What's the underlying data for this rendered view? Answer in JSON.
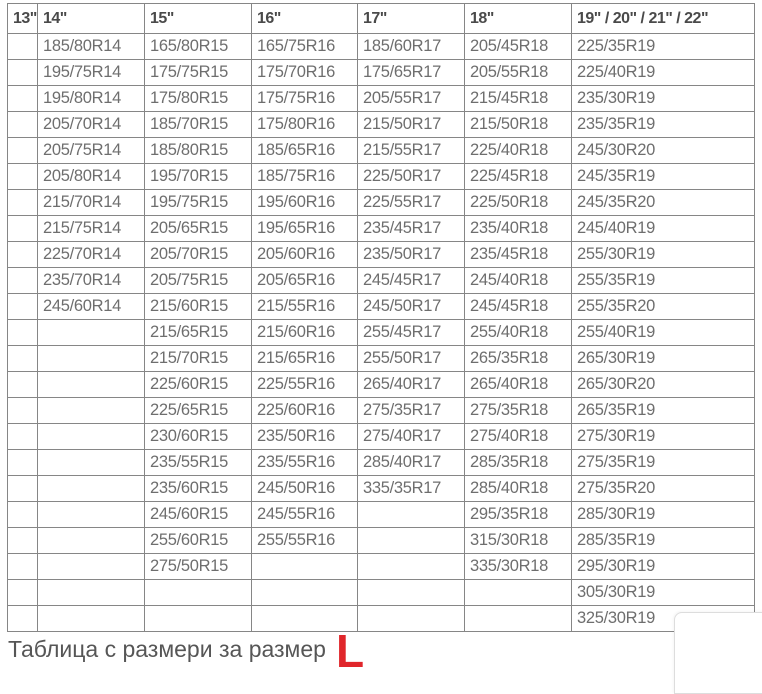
{
  "table": {
    "headers": [
      "13\"",
      "14\"",
      "15\"",
      "16\"",
      "17\"",
      "18\"",
      "19\" / 20\" / 21\" / 22\""
    ],
    "rows": [
      [
        "",
        "185/80R14",
        "165/80R15",
        "165/75R16",
        "185/60R17",
        "205/45R18",
        "225/35R19"
      ],
      [
        "",
        "195/75R14",
        "175/75R15",
        "175/70R16",
        "175/65R17",
        "205/55R18",
        "225/40R19"
      ],
      [
        "",
        "195/80R14",
        "175/80R15",
        "175/75R16",
        "205/55R17",
        "215/45R18",
        "235/30R19"
      ],
      [
        "",
        "205/70R14",
        "185/70R15",
        "175/80R16",
        "215/50R17",
        "215/50R18",
        "235/35R19"
      ],
      [
        "",
        "205/75R14",
        "185/80R15",
        "185/65R16",
        "215/55R17",
        "225/40R18",
        "245/30R20"
      ],
      [
        "",
        "205/80R14",
        "195/70R15",
        "185/75R16",
        "225/50R17",
        "225/45R18",
        "245/35R19"
      ],
      [
        "",
        "215/70R14",
        "195/75R15",
        "195/60R16",
        "225/55R17",
        "225/50R18",
        "245/35R20"
      ],
      [
        "",
        "215/75R14",
        "205/65R15",
        "195/65R16",
        "235/45R17",
        "235/40R18",
        "245/40R19"
      ],
      [
        "",
        "225/70R14",
        "205/70R15",
        "205/60R16",
        "235/50R17",
        "235/45R18",
        "255/30R19"
      ],
      [
        "",
        "235/70R14",
        "205/75R15",
        "205/65R16",
        "245/45R17",
        "245/40R18",
        "255/35R19"
      ],
      [
        "",
        "245/60R14",
        "215/60R15",
        "215/55R16",
        "245/50R17",
        "245/45R18",
        "255/35R20"
      ],
      [
        "",
        "",
        "215/65R15",
        "215/60R16",
        "255/45R17",
        "255/40R18",
        "255/40R19"
      ],
      [
        "",
        "",
        "215/70R15",
        "215/65R16",
        "255/50R17",
        "265/35R18",
        "265/30R19"
      ],
      [
        "",
        "",
        "225/60R15",
        "225/55R16",
        "265/40R17",
        "265/40R18",
        "265/30R20"
      ],
      [
        "",
        "",
        "225/65R15",
        "225/60R16",
        "275/35R17",
        "275/35R18",
        "265/35R19"
      ],
      [
        "",
        "",
        "230/60R15",
        "235/50R16",
        "275/40R17",
        "275/40R18",
        "275/30R19"
      ],
      [
        "",
        "",
        "235/55R15",
        "235/55R16",
        "285/40R17",
        "285/35R18",
        "275/35R19"
      ],
      [
        "",
        "",
        "235/60R15",
        "245/50R16",
        "335/35R17",
        "285/40R18",
        "275/35R20"
      ],
      [
        "",
        "",
        "245/60R15",
        "245/55R16",
        "",
        "295/35R18",
        "285/30R19"
      ],
      [
        "",
        "",
        "255/60R15",
        "255/55R16",
        "",
        "315/30R18",
        "285/35R19"
      ],
      [
        "",
        "",
        "275/50R15",
        "",
        "",
        "335/30R18",
        "295/30R19"
      ],
      [
        "",
        "",
        "",
        "",
        "",
        "",
        "305/30R19"
      ],
      [
        "",
        "",
        "",
        "",
        "",
        "",
        "325/30R19"
      ]
    ]
  },
  "caption": {
    "text": "Таблица с размери за размер",
    "size_letter": "L"
  },
  "colors": {
    "accent_red": "#e0262b",
    "cell_text": "#6e6e6e",
    "header_text": "#4a4a4a",
    "table_border": "#868686"
  }
}
